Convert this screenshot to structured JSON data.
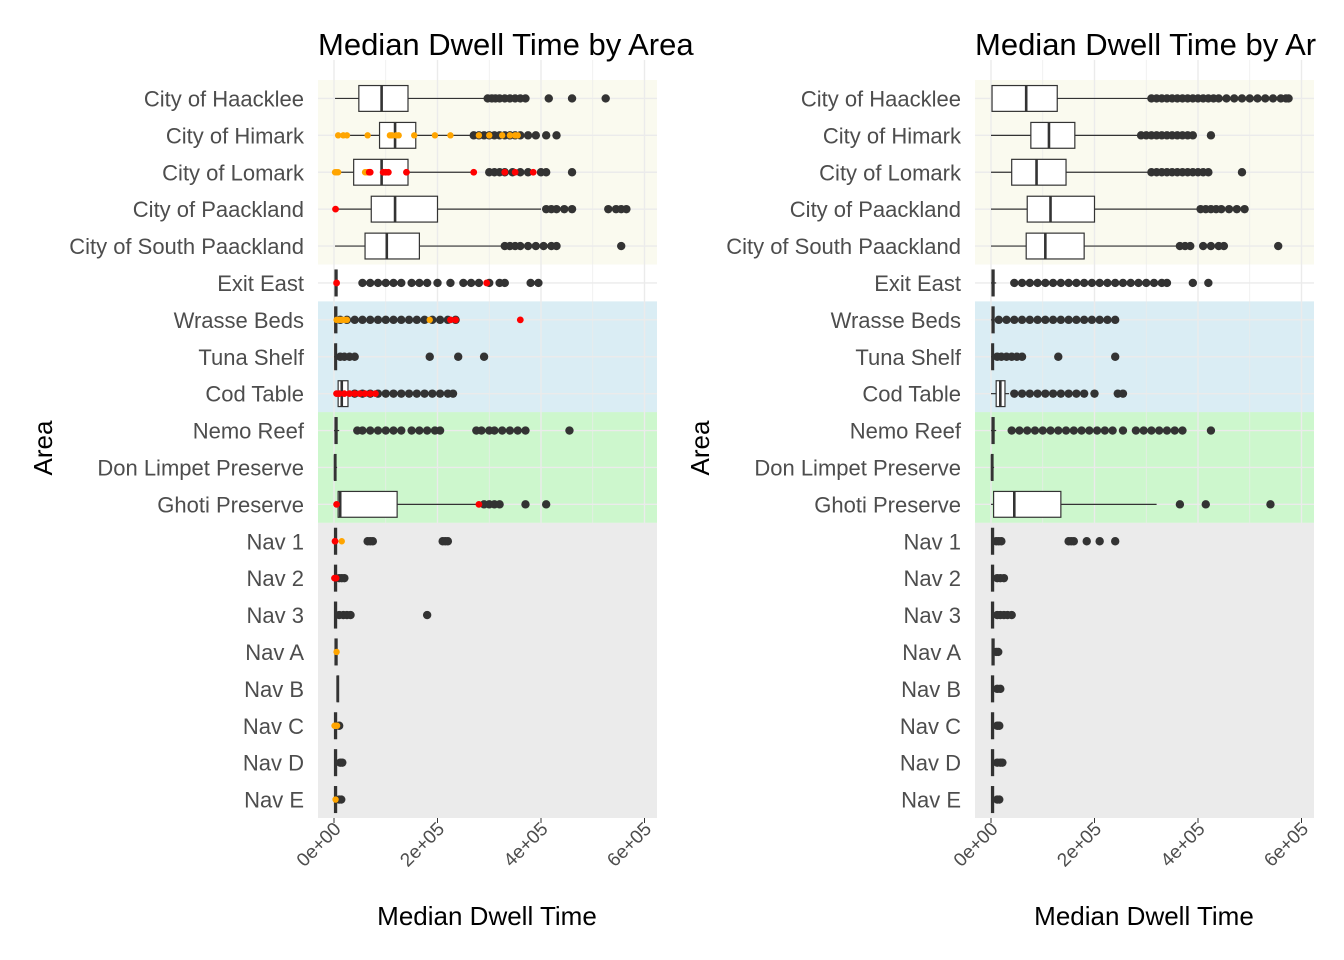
{
  "chart_data": [
    {
      "type": "boxplot",
      "title": "Median Dwell Time by Area",
      "xlabel": "Median Dwell Time",
      "ylabel": "Area",
      "xlim": [
        -30000,
        630000
      ],
      "xticks": [
        0,
        200000,
        400000,
        600000
      ],
      "xtick_labels": [
        "0e+00",
        "2e+05",
        "4e+05",
        "6e+05"
      ],
      "grid": true,
      "legend": "none",
      "colors": {
        "outlier": "#333333",
        "highlight_orange": "#FFA500",
        "highlight_red": "#FF0000",
        "box_fill": "#FFFFFF"
      },
      "bands": [
        {
          "from": "City of Haacklee",
          "to": "City of South Paackland",
          "color": "#F5F5DC"
        },
        {
          "from": "Wrasse Beds",
          "to": "Cod Table",
          "color": "#ADD8E6"
        },
        {
          "from": "Nemo Reef",
          "to": "Ghoti Preserve",
          "color": "#90EE90"
        },
        {
          "from": "Nav 1",
          "to": "Nav E",
          "color": "#D3D3D3"
        }
      ],
      "categories": [
        "City of Haacklee",
        "City of Himark",
        "City of Lomark",
        "City of Paackland",
        "City of South Paackland",
        "Exit East",
        "Wrasse Beds",
        "Tuna Shelf",
        "Cod Table",
        "Nemo Reef",
        "Don Limpet Preserve",
        "Ghoti Preserve",
        "Nav 1",
        "Nav 2",
        "Nav 3",
        "Nav A",
        "Nav B",
        "Nav C",
        "Nav D",
        "Nav E"
      ],
      "boxes": [
        {
          "wl": 2000,
          "q1": 48000,
          "med": 92000,
          "q3": 143000,
          "wh": 295000,
          "outliers": [
            297000,
            305000,
            312000,
            320000,
            330000,
            340000,
            350000,
            360000,
            370000,
            415000,
            460000,
            525000
          ],
          "orange": [],
          "red": []
        },
        {
          "wl": 2000,
          "q1": 88000,
          "med": 118000,
          "q3": 158000,
          "wh": 265000,
          "outliers": [
            270000,
            280000,
            290000,
            300000,
            310000,
            320000,
            330000,
            340000,
            350000,
            360000,
            375000,
            390000,
            410000,
            430000
          ],
          "orange": [
            8000,
            18000,
            25000,
            65000,
            108000,
            112000,
            120000,
            125000,
            155000,
            195000,
            225000,
            280000,
            300000,
            325000,
            340000,
            350000,
            355000
          ],
          "red": []
        },
        {
          "wl": 2000,
          "q1": 38000,
          "med": 92000,
          "q3": 143000,
          "wh": 270000,
          "outliers": [
            300000,
            310000,
            320000,
            330000,
            345000,
            360000,
            375000,
            400000,
            410000,
            460000
          ],
          "orange": [
            2000,
            5000,
            8000,
            60000,
            62000,
            65000
          ],
          "red": [
            68000,
            70000,
            95000,
            100000,
            105000,
            140000,
            270000,
            330000,
            350000,
            385000
          ]
        },
        {
          "wl": 2000,
          "q1": 72000,
          "med": 118000,
          "q3": 200000,
          "wh": 400000,
          "outliers": [
            410000,
            420000,
            430000,
            445000,
            460000,
            530000,
            545000,
            555000,
            565000
          ],
          "orange": [],
          "red": [
            3000
          ]
        },
        {
          "wl": 2000,
          "q1": 60000,
          "med": 102000,
          "q3": 165000,
          "wh": 325000,
          "outliers": [
            330000,
            340000,
            350000,
            360000,
            375000,
            390000,
            405000,
            420000,
            430000,
            555000
          ],
          "orange": [],
          "red": []
        },
        {
          "wl": 0,
          "q1": 2000,
          "med": 3500,
          "q3": 6000,
          "wh": 10000,
          "outliers": [
            55000,
            70000,
            85000,
            100000,
            115000,
            130000,
            150000,
            165000,
            180000,
            200000,
            225000,
            250000,
            265000,
            280000,
            300000,
            320000,
            330000,
            380000,
            395000
          ],
          "orange": [],
          "red": [
            5000,
            295000
          ]
        },
        {
          "wl": 0,
          "q1": 1500,
          "med": 3000,
          "q3": 5500,
          "wh": 8000,
          "outliers": [
            12000,
            25000,
            40000,
            55000,
            70000,
            85000,
            100000,
            115000,
            130000,
            145000,
            160000,
            175000,
            190000,
            205000,
            220000,
            235000
          ],
          "orange": [
            5000,
            10000,
            15000,
            20000,
            25000,
            185000
          ],
          "red": [
            225000,
            235000,
            360000
          ]
        },
        {
          "wl": 0,
          "q1": 1500,
          "med": 3000,
          "q3": 5000,
          "wh": 8000,
          "outliers": [
            12000,
            20000,
            30000,
            40000,
            185000,
            240000,
            290000
          ],
          "orange": [],
          "red": []
        },
        {
          "wl": 0,
          "q1": 8000,
          "med": 15000,
          "q3": 27000,
          "wh": 35000,
          "outliers": [
            40000,
            55000,
            70000,
            85000,
            100000,
            115000,
            130000,
            145000,
            160000,
            175000,
            190000,
            205000,
            220000,
            230000
          ],
          "orange": [],
          "red": [
            5000,
            10000,
            20000,
            30000,
            40000,
            50000,
            60000,
            70000,
            80000
          ]
        },
        {
          "wl": 0,
          "q1": 2000,
          "med": 4000,
          "q3": 6000,
          "wh": 10000,
          "outliers": [
            45000,
            55000,
            70000,
            85000,
            100000,
            115000,
            130000,
            150000,
            165000,
            180000,
            195000,
            205000,
            275000,
            285000,
            300000,
            310000,
            325000,
            340000,
            355000,
            370000,
            455000
          ],
          "orange": [],
          "red": []
        },
        {
          "wl": 0,
          "q1": 1000,
          "med": 2000,
          "q3": 3500,
          "wh": 6000,
          "outliers": [],
          "orange": [],
          "red": []
        },
        {
          "wl": 0,
          "q1": 8000,
          "med": 12000,
          "q3": 122000,
          "wh": 280000,
          "outliers": [
            290000,
            300000,
            310000,
            320000,
            370000,
            410000
          ],
          "orange": [],
          "red": [
            5000,
            280000
          ]
        },
        {
          "wl": 0,
          "q1": 1000,
          "med": 3000,
          "q3": 5000,
          "wh": 8000,
          "outliers": [
            65000,
            70000,
            75000,
            210000,
            215000,
            220000
          ],
          "orange": [
            15000
          ],
          "red": [
            2000
          ]
        },
        {
          "wl": 0,
          "q1": 1000,
          "med": 3000,
          "q3": 5000,
          "wh": 8000,
          "outliers": [
            10000,
            15000,
            20000
          ],
          "orange": [],
          "red": [
            1000,
            4000
          ]
        },
        {
          "wl": 0,
          "q1": 1000,
          "med": 3000,
          "q3": 5000,
          "wh": 8000,
          "outliers": [
            10000,
            18000,
            25000,
            32000,
            180000
          ],
          "orange": [],
          "red": []
        },
        {
          "wl": 1000,
          "q1": 2000,
          "med": 4000,
          "q3": 6000,
          "wh": 8000,
          "outliers": [],
          "orange": [
            5000
          ],
          "red": []
        },
        {
          "wl": 5000,
          "q1": 6000,
          "med": 7000,
          "q3": 8000,
          "wh": 9000,
          "outliers": [],
          "orange": [],
          "red": []
        },
        {
          "wl": 0,
          "q1": 1000,
          "med": 3000,
          "q3": 5000,
          "wh": 8000,
          "outliers": [
            10000
          ],
          "orange": [
            1000,
            3000,
            6000
          ],
          "red": []
        },
        {
          "wl": 0,
          "q1": 1000,
          "med": 3000,
          "q3": 5000,
          "wh": 8000,
          "outliers": [
            12000,
            16000
          ],
          "orange": [],
          "red": []
        },
        {
          "wl": 0,
          "q1": 1000,
          "med": 3000,
          "q3": 5000,
          "wh": 8000,
          "outliers": [
            10000,
            14000
          ],
          "orange": [
            3000
          ],
          "red": []
        }
      ]
    },
    {
      "type": "boxplot",
      "title": "Median Dwell Time by Ar",
      "xlabel": "Median Dwell Time",
      "ylabel": "Area",
      "xlim": [
        -30000,
        630000
      ],
      "xticks": [
        0,
        200000,
        400000,
        600000
      ],
      "xtick_labels": [
        "0e+00",
        "2e+05",
        "4e+05",
        "6e+05"
      ],
      "grid": true,
      "legend": "none",
      "colors": {
        "outlier": "#333333",
        "box_fill": "#FFFFFF"
      },
      "bands": [
        {
          "from": "City of Haacklee",
          "to": "City of South Paackland",
          "color": "#F5F5DC"
        },
        {
          "from": "Wrasse Beds",
          "to": "Cod Table",
          "color": "#ADD8E6"
        },
        {
          "from": "Nemo Reef",
          "to": "Ghoti Preserve",
          "color": "#90EE90"
        },
        {
          "from": "Nav 1",
          "to": "Nav E",
          "color": "#D3D3D3"
        }
      ],
      "categories": [
        "City of Haacklee",
        "City of Himark",
        "City of Lomark",
        "City of Paackland",
        "City of South Paackland",
        "Exit East",
        "Wrasse Beds",
        "Tuna Shelf",
        "Cod Table",
        "Nemo Reef",
        "Don Limpet Preserve",
        "Ghoti Preserve",
        "Nav 1",
        "Nav 2",
        "Nav 3",
        "Nav A",
        "Nav B",
        "Nav C",
        "Nav D",
        "Nav E"
      ],
      "boxes": [
        {
          "wl": 2000,
          "q1": 2000,
          "med": 68000,
          "q3": 128000,
          "wh": 305000,
          "outliers": [
            310000,
            320000,
            330000,
            340000,
            350000,
            360000,
            370000,
            380000,
            390000,
            400000,
            410000,
            420000,
            430000,
            440000,
            455000,
            470000,
            485000,
            500000,
            515000,
            530000,
            545000,
            560000,
            570000,
            575000
          ],
          "orange": [],
          "red": []
        },
        {
          "wl": 0,
          "q1": 77000,
          "med": 112000,
          "q3": 162000,
          "wh": 285000,
          "outliers": [
            290000,
            300000,
            310000,
            320000,
            330000,
            340000,
            350000,
            360000,
            370000,
            380000,
            390000,
            425000
          ],
          "orange": [],
          "red": []
        },
        {
          "wl": 0,
          "q1": 40000,
          "med": 88000,
          "q3": 145000,
          "wh": 305000,
          "outliers": [
            310000,
            320000,
            330000,
            340000,
            350000,
            360000,
            370000,
            380000,
            390000,
            400000,
            410000,
            420000,
            485000
          ],
          "orange": [],
          "red": []
        },
        {
          "wl": 0,
          "q1": 70000,
          "med": 115000,
          "q3": 200000,
          "wh": 400000,
          "outliers": [
            405000,
            415000,
            425000,
            435000,
            445000,
            460000,
            475000,
            490000
          ],
          "orange": [],
          "red": []
        },
        {
          "wl": 0,
          "q1": 68000,
          "med": 105000,
          "q3": 180000,
          "wh": 360000,
          "outliers": [
            365000,
            375000,
            385000,
            410000,
            425000,
            440000,
            450000,
            555000
          ],
          "orange": [],
          "red": []
        },
        {
          "wl": 0,
          "q1": 2000,
          "med": 3500,
          "q3": 6000,
          "wh": 10000,
          "outliers": [
            45000,
            60000,
            75000,
            90000,
            105000,
            120000,
            135000,
            150000,
            165000,
            180000,
            195000,
            210000,
            225000,
            240000,
            255000,
            270000,
            285000,
            300000,
            315000,
            330000,
            340000,
            390000,
            420000
          ],
          "orange": [],
          "red": []
        },
        {
          "wl": 0,
          "q1": 2000,
          "med": 3500,
          "q3": 6000,
          "wh": 10000,
          "outliers": [
            15000,
            30000,
            45000,
            60000,
            75000,
            90000,
            105000,
            120000,
            135000,
            150000,
            165000,
            180000,
            195000,
            210000,
            225000,
            240000
          ],
          "orange": [],
          "red": []
        },
        {
          "wl": 0,
          "q1": 1500,
          "med": 3000,
          "q3": 5000,
          "wh": 8000,
          "outliers": [
            12000,
            20000,
            30000,
            40000,
            50000,
            60000,
            130000,
            240000
          ],
          "orange": [],
          "red": []
        },
        {
          "wl": 0,
          "q1": 10000,
          "med": 18000,
          "q3": 27000,
          "wh": 35000,
          "outliers": [
            45000,
            60000,
            75000,
            90000,
            105000,
            120000,
            135000,
            150000,
            165000,
            180000,
            200000,
            245000,
            255000
          ],
          "orange": [],
          "red": []
        },
        {
          "wl": 0,
          "q1": 2000,
          "med": 4000,
          "q3": 6000,
          "wh": 10000,
          "outliers": [
            40000,
            55000,
            70000,
            85000,
            100000,
            115000,
            130000,
            145000,
            160000,
            175000,
            190000,
            205000,
            220000,
            235000,
            255000,
            280000,
            295000,
            310000,
            325000,
            340000,
            355000,
            370000,
            425000
          ],
          "orange": [],
          "red": []
        },
        {
          "wl": 0,
          "q1": 1000,
          "med": 2000,
          "q3": 3500,
          "wh": 6000,
          "outliers": [],
          "orange": [],
          "red": []
        },
        {
          "wl": 0,
          "q1": 5000,
          "med": 45000,
          "q3": 135000,
          "wh": 320000,
          "outliers": [
            365000,
            415000,
            540000
          ],
          "orange": [],
          "red": []
        },
        {
          "wl": 0,
          "q1": 1000,
          "med": 3000,
          "q3": 5000,
          "wh": 8000,
          "outliers": [
            10000,
            15000,
            20000,
            150000,
            155000,
            160000,
            185000,
            210000,
            240000
          ],
          "orange": [],
          "red": []
        },
        {
          "wl": 0,
          "q1": 1000,
          "med": 3000,
          "q3": 5000,
          "wh": 8000,
          "outliers": [
            12000,
            18000,
            25000
          ],
          "orange": [],
          "red": []
        },
        {
          "wl": 0,
          "q1": 1000,
          "med": 3000,
          "q3": 5000,
          "wh": 8000,
          "outliers": [
            12000,
            18000,
            25000,
            32000,
            40000
          ],
          "orange": [],
          "red": []
        },
        {
          "wl": 1000,
          "q1": 2000,
          "med": 4000,
          "q3": 6000,
          "wh": 8000,
          "outliers": [
            10000,
            14000
          ],
          "orange": [],
          "red": []
        },
        {
          "wl": 0,
          "q1": 1000,
          "med": 3000,
          "q3": 5000,
          "wh": 8000,
          "outliers": [
            12000,
            18000
          ],
          "orange": [],
          "red": []
        },
        {
          "wl": 0,
          "q1": 1000,
          "med": 3000,
          "q3": 5000,
          "wh": 8000,
          "outliers": [
            12000,
            16000
          ],
          "orange": [],
          "red": []
        },
        {
          "wl": 0,
          "q1": 1000,
          "med": 3000,
          "q3": 5000,
          "wh": 8000,
          "outliers": [
            12000,
            18000,
            22000
          ],
          "orange": [],
          "red": []
        },
        {
          "wl": 0,
          "q1": 1000,
          "med": 3000,
          "q3": 5000,
          "wh": 8000,
          "outliers": [
            12000,
            16000
          ],
          "orange": [],
          "red": []
        }
      ]
    }
  ]
}
